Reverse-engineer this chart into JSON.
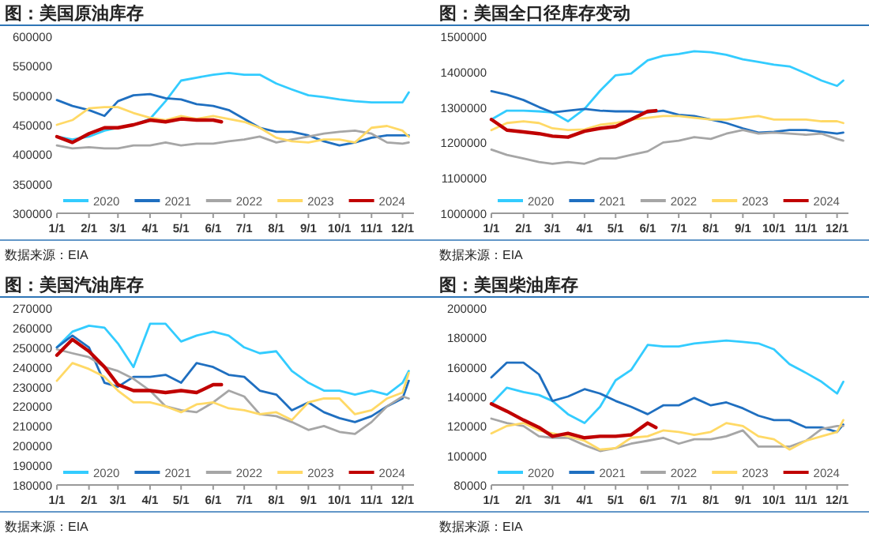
{
  "chart_data": [
    {
      "type": "line",
      "title": "图：美国原油库存",
      "annotations": [
        "数据来源：EIA"
      ],
      "legend": "bottom",
      "x": [
        "--01-01",
        "--01-16",
        "--02-01",
        "--02-16",
        "--03-01",
        "--03-16",
        "--04-01",
        "--04-16",
        "--05-01",
        "--05-16",
        "--06-01",
        "--06-16",
        "--07-01",
        "--07-16",
        "--08-01",
        "--08-16",
        "--09-01",
        "--09-16",
        "--10-01",
        "--10-16",
        "--11-01",
        "--11-16",
        "--12-01",
        "--12-07"
      ],
      "xlim": [
        "--01-01",
        "--12-12"
      ],
      "xticks": [
        {
          "value": "--01-01",
          "label": "1/1"
        },
        {
          "value": "--02-01",
          "label": "2/1"
        },
        {
          "value": "--03-01",
          "label": "3/1"
        },
        {
          "value": "--04-01",
          "label": "4/1"
        },
        {
          "value": "--05-01",
          "label": "5/1"
        },
        {
          "value": "--06-01",
          "label": "6/1"
        },
        {
          "value": "--07-01",
          "label": "7/1"
        },
        {
          "value": "--08-01",
          "label": "8/1"
        },
        {
          "value": "--09-01",
          "label": "9/1"
        },
        {
          "value": "--10-01",
          "label": "10/1"
        },
        {
          "value": "--11-01",
          "label": "11/1"
        },
        {
          "value": "--12-01",
          "label": "12/1"
        }
      ],
      "ylim": [
        300000,
        600000
      ],
      "yticks": [
        300000,
        350000,
        400000,
        450000,
        500000,
        550000,
        600000
      ],
      "series": [
        {
          "name": "2020",
          "color": "#33ccff",
          "values": [
            430000,
            425000,
            430000,
            440000,
            445000,
            450000,
            460000,
            490000,
            525000,
            530000,
            535000,
            538000,
            535000,
            535000,
            520000,
            510000,
            500000,
            497000,
            493000,
            490000,
            488000,
            488000,
            488000,
            505000
          ]
        },
        {
          "name": "2021",
          "color": "#1f6fc0",
          "values": [
            492000,
            482000,
            475000,
            465000,
            490000,
            500000,
            502000,
            495000,
            493000,
            485000,
            482000,
            475000,
            460000,
            445000,
            438000,
            438000,
            432000,
            422000,
            415000,
            420000,
            428000,
            432000,
            432000,
            432000
          ]
        },
        {
          "name": "2022",
          "color": "#a6a6a6",
          "values": [
            415000,
            410000,
            412000,
            410000,
            410000,
            415000,
            415000,
            420000,
            415000,
            418000,
            418000,
            422000,
            425000,
            430000,
            420000,
            425000,
            430000,
            435000,
            438000,
            440000,
            435000,
            420000,
            418000,
            420000
          ]
        },
        {
          "name": "2023",
          "color": "#ffd966",
          "values": [
            450000,
            458000,
            478000,
            480000,
            480000,
            470000,
            462000,
            458000,
            465000,
            460000,
            465000,
            460000,
            455000,
            445000,
            428000,
            422000,
            420000,
            425000,
            425000,
            420000,
            445000,
            448000,
            440000,
            430000
          ]
        },
        {
          "name": "2024",
          "color": "#c00000",
          "x": [
            "--01-01",
            "--01-16",
            "--02-01",
            "--02-16",
            "--03-01",
            "--03-16",
            "--04-01",
            "--04-16",
            "--05-01",
            "--05-16",
            "--06-01",
            "--06-09"
          ],
          "values": [
            430000,
            420000,
            435000,
            445000,
            445000,
            450000,
            458000,
            455000,
            460000,
            458000,
            458000,
            455000
          ]
        }
      ]
    },
    {
      "type": "line",
      "title": "图：美国全口径库存变动",
      "annotations": [
        "数据来源：EIA"
      ],
      "legend": "bottom",
      "x": [
        "--01-01",
        "--01-16",
        "--02-01",
        "--02-16",
        "--03-01",
        "--03-16",
        "--04-01",
        "--04-16",
        "--05-01",
        "--05-16",
        "--06-01",
        "--06-16",
        "--07-01",
        "--07-16",
        "--08-01",
        "--08-16",
        "--09-01",
        "--09-16",
        "--10-01",
        "--10-16",
        "--11-01",
        "--11-16",
        "--12-01",
        "--12-07"
      ],
      "xlim": [
        "--01-01",
        "--12-12"
      ],
      "xticks": [
        {
          "value": "--01-01",
          "label": "1/1"
        },
        {
          "value": "--02-01",
          "label": "2/1"
        },
        {
          "value": "--03-01",
          "label": "3/1"
        },
        {
          "value": "--04-01",
          "label": "4/1"
        },
        {
          "value": "--05-01",
          "label": "5/1"
        },
        {
          "value": "--06-01",
          "label": "6/1"
        },
        {
          "value": "--07-01",
          "label": "7/1"
        },
        {
          "value": "--08-01",
          "label": "8/1"
        },
        {
          "value": "--09-01",
          "label": "9/1"
        },
        {
          "value": "--10-01",
          "label": "10/1"
        },
        {
          "value": "--11-01",
          "label": "11/1"
        },
        {
          "value": "--12-01",
          "label": "12/1"
        }
      ],
      "ylim": [
        1000000,
        1500000
      ],
      "yticks": [
        1000000,
        1100000,
        1200000,
        1300000,
        1400000,
        1500000
      ],
      "series": [
        {
          "name": "2020",
          "color": "#33ccff",
          "values": [
            1265000,
            1290000,
            1290000,
            1288000,
            1285000,
            1260000,
            1295000,
            1346000,
            1390000,
            1395000,
            1432000,
            1445000,
            1450000,
            1458000,
            1455000,
            1448000,
            1435000,
            1428000,
            1420000,
            1415000,
            1395000,
            1375000,
            1360000,
            1375000
          ]
        },
        {
          "name": "2021",
          "color": "#1f6fc0",
          "values": [
            1345000,
            1335000,
            1320000,
            1300000,
            1285000,
            1290000,
            1295000,
            1290000,
            1288000,
            1288000,
            1285000,
            1290000,
            1278000,
            1275000,
            1265000,
            1255000,
            1240000,
            1228000,
            1230000,
            1235000,
            1235000,
            1230000,
            1225000,
            1228000
          ]
        },
        {
          "name": "2022",
          "color": "#a6a6a6",
          "values": [
            1180000,
            1165000,
            1155000,
            1145000,
            1140000,
            1145000,
            1140000,
            1155000,
            1155000,
            1165000,
            1175000,
            1200000,
            1205000,
            1215000,
            1210000,
            1225000,
            1235000,
            1225000,
            1228000,
            1225000,
            1222000,
            1225000,
            1210000,
            1205000
          ]
        },
        {
          "name": "2023",
          "color": "#ffd966",
          "values": [
            1235000,
            1255000,
            1260000,
            1255000,
            1240000,
            1235000,
            1237000,
            1250000,
            1255000,
            1265000,
            1270000,
            1275000,
            1275000,
            1270000,
            1265000,
            1265000,
            1270000,
            1275000,
            1265000,
            1265000,
            1265000,
            1260000,
            1260000,
            1255000
          ]
        },
        {
          "name": "2024",
          "color": "#c00000",
          "x": [
            "--01-01",
            "--01-16",
            "--02-01",
            "--02-16",
            "--03-01",
            "--03-16",
            "--04-01",
            "--04-16",
            "--05-01",
            "--05-16",
            "--06-01",
            "--06-09"
          ],
          "values": [
            1265000,
            1235000,
            1230000,
            1225000,
            1218000,
            1215000,
            1232000,
            1240000,
            1245000,
            1265000,
            1288000,
            1290000
          ]
        }
      ]
    },
    {
      "type": "line",
      "title": "图：美国汽油库存",
      "annotations": [
        "数据来源：EIA"
      ],
      "legend": "bottom",
      "x": [
        "--01-01",
        "--01-16",
        "--02-01",
        "--02-16",
        "--03-01",
        "--03-16",
        "--04-01",
        "--04-16",
        "--05-01",
        "--05-16",
        "--06-01",
        "--06-16",
        "--07-01",
        "--07-16",
        "--08-01",
        "--08-16",
        "--09-01",
        "--09-16",
        "--10-01",
        "--10-16",
        "--11-01",
        "--11-16",
        "--12-01",
        "--12-07"
      ],
      "xlim": [
        "--01-01",
        "--12-12"
      ],
      "xticks": [
        {
          "value": "--01-01",
          "label": "1/1"
        },
        {
          "value": "--02-01",
          "label": "2/1"
        },
        {
          "value": "--03-01",
          "label": "3/1"
        },
        {
          "value": "--04-01",
          "label": "4/1"
        },
        {
          "value": "--05-01",
          "label": "5/1"
        },
        {
          "value": "--06-01",
          "label": "6/1"
        },
        {
          "value": "--07-01",
          "label": "7/1"
        },
        {
          "value": "--08-01",
          "label": "8/1"
        },
        {
          "value": "--09-01",
          "label": "9/1"
        },
        {
          "value": "--10-01",
          "label": "10/1"
        },
        {
          "value": "--11-01",
          "label": "11/1"
        },
        {
          "value": "--12-01",
          "label": "12/1"
        }
      ],
      "ylim": [
        180000,
        270000
      ],
      "yticks": [
        180000,
        190000,
        200000,
        210000,
        220000,
        230000,
        240000,
        250000,
        260000,
        270000
      ],
      "series": [
        {
          "name": "2020",
          "color": "#33ccff",
          "values": [
            250000,
            258000,
            261000,
            260000,
            252000,
            240000,
            262000,
            262000,
            253000,
            256000,
            258000,
            256000,
            250000,
            247000,
            248000,
            238000,
            232000,
            228000,
            228000,
            226000,
            228000,
            226000,
            232000,
            238000
          ]
        },
        {
          "name": "2021",
          "color": "#1f6fc0",
          "values": [
            250000,
            256000,
            250000,
            232000,
            230000,
            235000,
            235000,
            236000,
            232000,
            242000,
            240000,
            236000,
            235000,
            228000,
            226000,
            218000,
            222000,
            217000,
            214000,
            212000,
            215000,
            220000,
            224000,
            233000
          ]
        },
        {
          "name": "2022",
          "color": "#a6a6a6",
          "values": [
            249000,
            247000,
            245000,
            240000,
            238000,
            234000,
            228000,
            220000,
            218000,
            217000,
            222000,
            228000,
            225000,
            216000,
            215000,
            212000,
            208000,
            210000,
            207000,
            206000,
            212000,
            220000,
            225000,
            224000
          ]
        },
        {
          "name": "2023",
          "color": "#ffd966",
          "values": [
            233000,
            242000,
            239000,
            235000,
            228000,
            222000,
            222000,
            220000,
            217000,
            221000,
            222000,
            219000,
            218000,
            216000,
            217000,
            213000,
            222000,
            224000,
            224000,
            216000,
            218000,
            224000,
            227000,
            237000
          ]
        },
        {
          "name": "2024",
          "color": "#c00000",
          "x": [
            "--01-01",
            "--01-16",
            "--02-01",
            "--02-16",
            "--03-01",
            "--03-16",
            "--04-01",
            "--04-16",
            "--05-01",
            "--05-16",
            "--06-01",
            "--06-09"
          ],
          "values": [
            246000,
            254000,
            248000,
            240000,
            231000,
            228000,
            228000,
            227000,
            228000,
            227000,
            231000,
            231000
          ]
        }
      ]
    },
    {
      "type": "line",
      "title": "图：美国柴油库存",
      "annotations": [
        "数据来源：EIA"
      ],
      "legend": "bottom",
      "x": [
        "--01-01",
        "--01-16",
        "--02-01",
        "--02-16",
        "--03-01",
        "--03-16",
        "--04-01",
        "--04-16",
        "--05-01",
        "--05-16",
        "--06-01",
        "--06-16",
        "--07-01",
        "--07-16",
        "--08-01",
        "--08-16",
        "--09-01",
        "--09-16",
        "--10-01",
        "--10-16",
        "--11-01",
        "--11-16",
        "--12-01",
        "--12-07"
      ],
      "xlim": [
        "--01-01",
        "--12-12"
      ],
      "xticks": [
        {
          "value": "--01-01",
          "label": "1/1"
        },
        {
          "value": "--02-01",
          "label": "2/1"
        },
        {
          "value": "--03-01",
          "label": "3/1"
        },
        {
          "value": "--04-01",
          "label": "4/1"
        },
        {
          "value": "--05-01",
          "label": "5/1"
        },
        {
          "value": "--06-01",
          "label": "6/1"
        },
        {
          "value": "--07-01",
          "label": "7/1"
        },
        {
          "value": "--08-01",
          "label": "8/1"
        },
        {
          "value": "--09-01",
          "label": "9/1"
        },
        {
          "value": "--10-01",
          "label": "10/1"
        },
        {
          "value": "--11-01",
          "label": "11/1"
        },
        {
          "value": "--12-01",
          "label": "12/1"
        }
      ],
      "ylim": [
        80000,
        200000
      ],
      "yticks": [
        80000,
        100000,
        120000,
        140000,
        160000,
        180000,
        200000
      ],
      "series": [
        {
          "name": "2020",
          "color": "#33ccff",
          "values": [
            135000,
            146000,
            143000,
            141000,
            137000,
            128000,
            122000,
            133000,
            151000,
            158000,
            175000,
            174000,
            174000,
            176000,
            177000,
            178000,
            177000,
            176000,
            172000,
            162000,
            156000,
            150000,
            142000,
            150000
          ]
        },
        {
          "name": "2021",
          "color": "#1f6fc0",
          "values": [
            153000,
            163000,
            163000,
            155000,
            137000,
            140000,
            145000,
            142000,
            137000,
            133000,
            128000,
            134000,
            134000,
            139000,
            134000,
            136000,
            132000,
            127000,
            124000,
            124000,
            119000,
            119000,
            116000,
            121000
          ]
        },
        {
          "name": "2022",
          "color": "#a6a6a6",
          "values": [
            125000,
            122000,
            120000,
            113000,
            112000,
            112000,
            107000,
            103000,
            105000,
            108000,
            110000,
            112000,
            108000,
            111000,
            111000,
            113000,
            117000,
            106000,
            106000,
            106000,
            110000,
            118000,
            120000,
            120000
          ]
        },
        {
          "name": "2023",
          "color": "#ffd966",
          "values": [
            115000,
            120000,
            122000,
            117000,
            115000,
            113000,
            110000,
            104000,
            105000,
            112000,
            113000,
            117000,
            116000,
            114000,
            116000,
            122000,
            120000,
            113000,
            111000,
            104000,
            110000,
            113000,
            116000,
            124000
          ]
        },
        {
          "name": "2024",
          "color": "#c00000",
          "x": [
            "--01-01",
            "--01-16",
            "--02-01",
            "--02-16",
            "--03-01",
            "--03-16",
            "--04-01",
            "--04-16",
            "--05-01",
            "--05-16",
            "--06-01",
            "--06-09"
          ],
          "values": [
            135000,
            130000,
            124000,
            119000,
            113000,
            115000,
            112000,
            113000,
            113000,
            114000,
            122000,
            119000
          ]
        }
      ]
    }
  ]
}
